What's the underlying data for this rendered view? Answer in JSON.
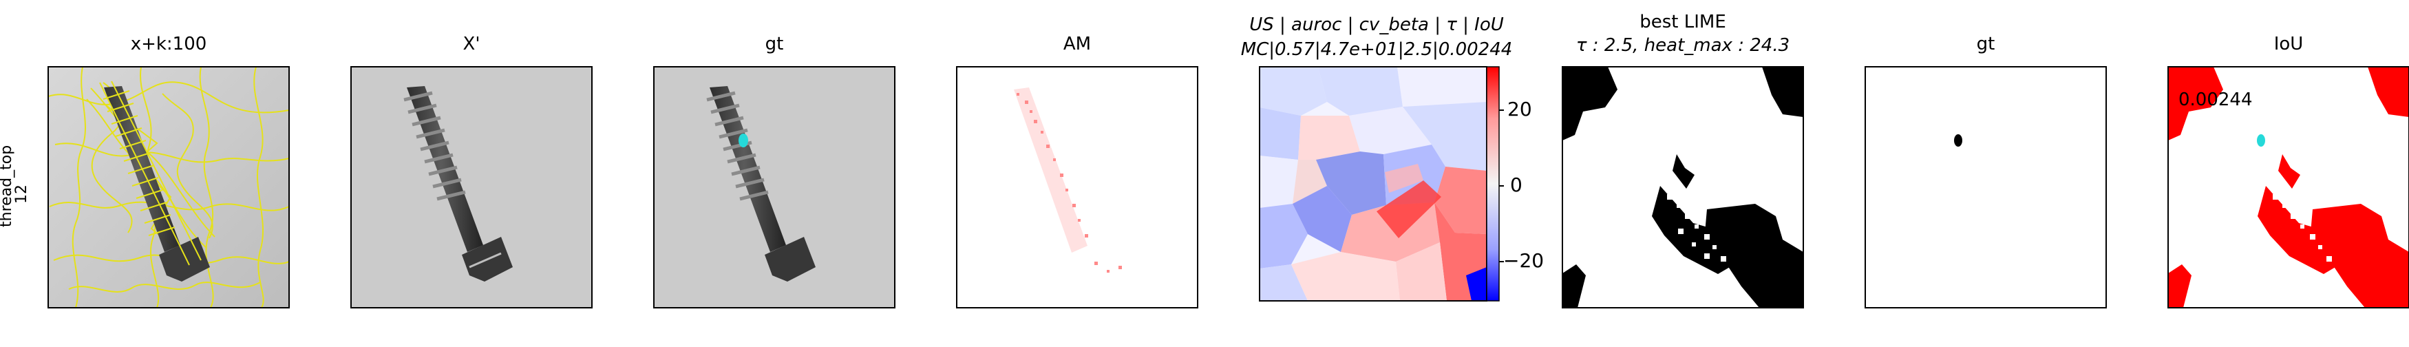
{
  "row_label": {
    "line1": "thread_top",
    "line2": "12"
  },
  "panels": [
    {
      "key": "x_superpixels",
      "title": "x+k:100"
    },
    {
      "key": "x_prime",
      "title": "X'"
    },
    {
      "key": "gt_overlay",
      "title": "gt"
    },
    {
      "key": "am",
      "title": "AM"
    },
    {
      "key": "explanation",
      "title_line1": "US | auroc | cv_beta | τ | IoU",
      "title_line2": "MC|0.57|4.7e+01|2.5|0.00244"
    },
    {
      "key": "best_lime",
      "title_line1": "best LIME",
      "title_line2": "τ : 2.5, heat_max : 24.3"
    },
    {
      "key": "gt_mask",
      "title": "gt"
    },
    {
      "key": "iou",
      "title": "IoU",
      "annotation": "0.00244"
    }
  ],
  "colorbar": {
    "ticks": [
      "20",
      "0",
      "−20"
    ],
    "colors": {
      "top": "#ff0000",
      "upper": "#ff9a9a",
      "middle": "#f4f4f4",
      "lower": "#9aa0ff",
      "bottom": "#0000ff"
    }
  },
  "colors": {
    "frame": "#000000",
    "superpixel_outline": "#e5e11a",
    "gt_marker": "#25d9d9",
    "iou_red": "#ff0000",
    "lime_black": "#000000"
  }
}
